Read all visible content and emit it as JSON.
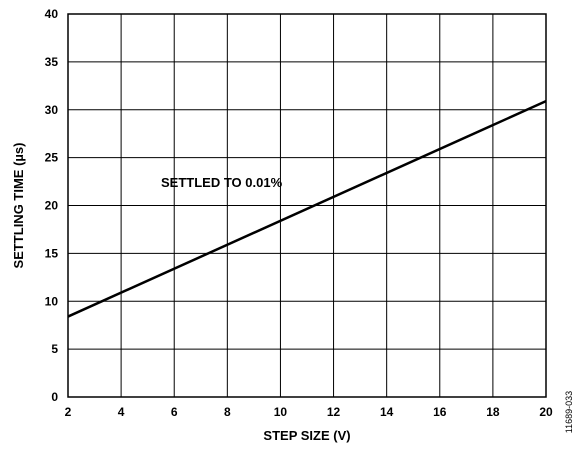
{
  "chart_data": {
    "type": "line",
    "xlabel": "STEP SIZE (V)",
    "ylabel": "SETTLING TIME (µs)",
    "xlim": [
      2,
      20
    ],
    "ylim": [
      0,
      40
    ],
    "xticks": [
      2,
      4,
      6,
      8,
      10,
      12,
      14,
      16,
      18,
      20
    ],
    "yticks": [
      0,
      5,
      10,
      15,
      20,
      25,
      30,
      35,
      40
    ],
    "grid": true,
    "series": [
      {
        "x": [
          2,
          20
        ],
        "y": [
          8.4,
          30.9
        ]
      }
    ],
    "annotations": [
      "SETTLED TO 0.01%"
    ]
  },
  "figure_id": "11689-033"
}
